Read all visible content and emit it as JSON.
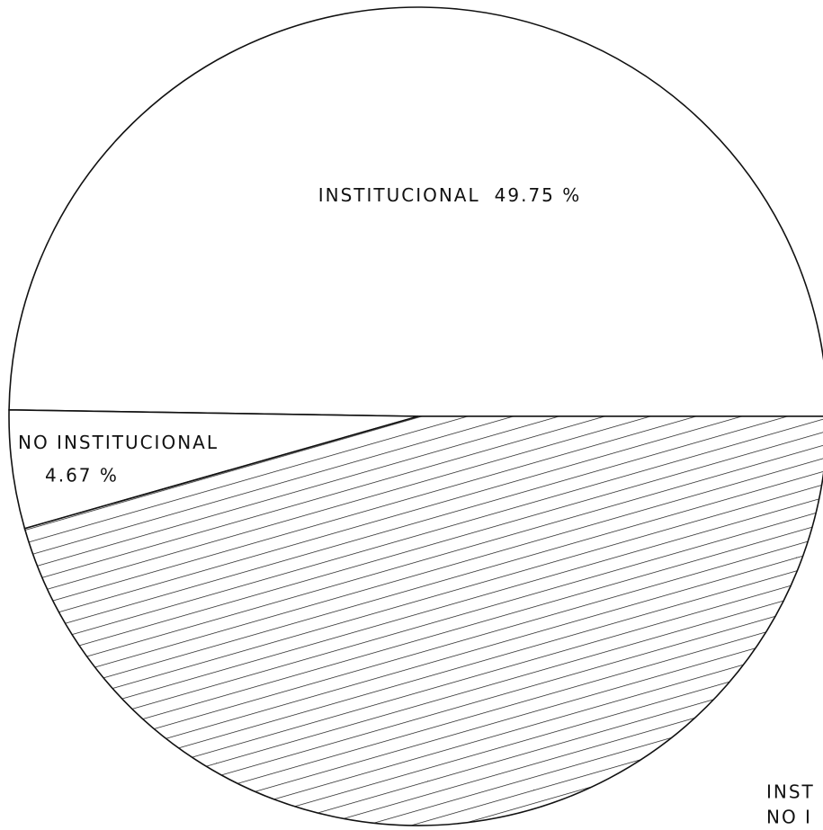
{
  "chart_data": {
    "type": "pie",
    "categories": [
      "INSTITUCIONAL",
      "NO INSTITUCIONAL",
      null
    ],
    "values": [
      49.75,
      4.67,
      45.58
    ],
    "value_labels": [
      "49.75 %",
      "4.67 %",
      null
    ],
    "hatched": [
      false,
      false,
      true
    ],
    "annotations": [
      "INST",
      "NO I"
    ]
  }
}
